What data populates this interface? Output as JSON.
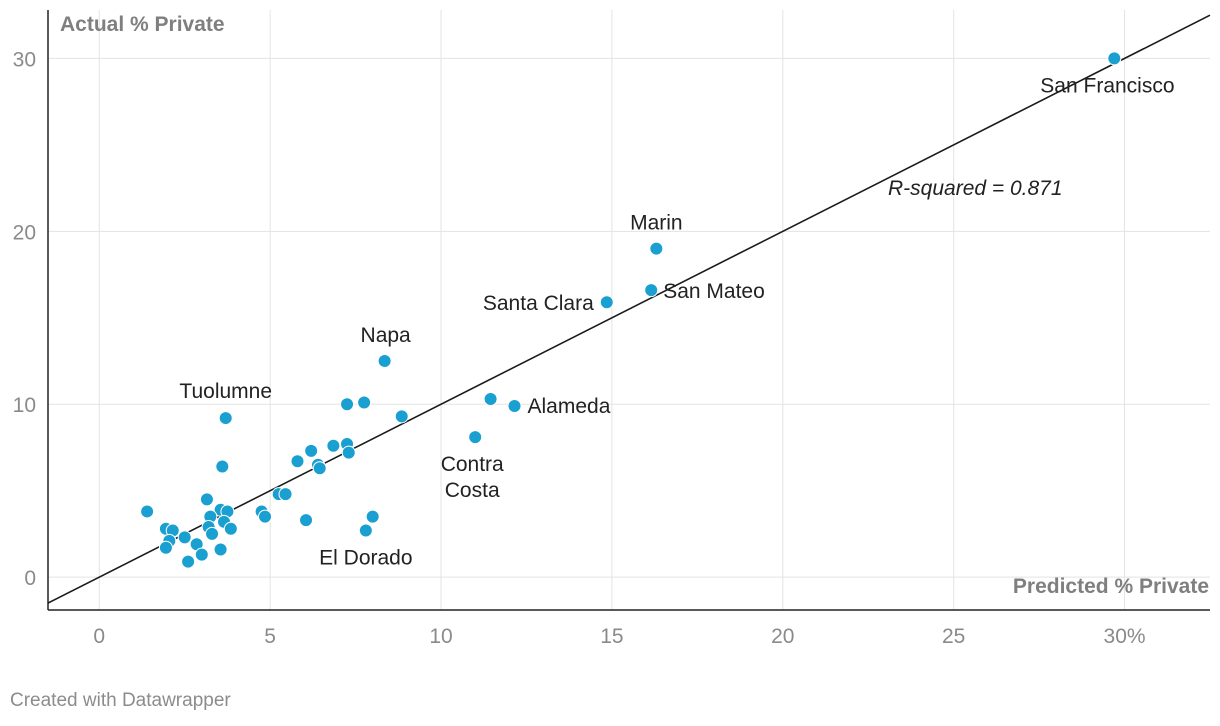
{
  "chart_data": {
    "type": "scatter",
    "xlabel": "Predicted % Private",
    "ylabel": "Actual % Private",
    "xlim": [
      -1.5,
      32.5
    ],
    "ylim": [
      -1.9,
      32.8
    ],
    "x_ticks": [
      0,
      5,
      10,
      15,
      20,
      25,
      30
    ],
    "x_tick_labels": [
      "0",
      "5",
      "10",
      "15",
      "20",
      "25",
      "30%"
    ],
    "y_ticks": [
      0,
      10,
      20,
      30
    ],
    "y_tick_labels": [
      "0",
      "10",
      "20",
      "30"
    ],
    "grid": true,
    "point_color": "#1a9fd1",
    "trendline": {
      "intercept": 0.0,
      "slope": 1.0,
      "x_from": -1.5,
      "x_to": 32.5
    },
    "annotation": "R-squared = 0.871",
    "points": [
      {
        "x": 29.7,
        "y": 30.0,
        "label": "San Francisco"
      },
      {
        "x": 16.3,
        "y": 19.0,
        "label": "Marin"
      },
      {
        "x": 16.15,
        "y": 16.6,
        "label": "San Mateo"
      },
      {
        "x": 14.85,
        "y": 15.9,
        "label": "Santa Clara"
      },
      {
        "x": 8.35,
        "y": 12.5,
        "label": "Napa"
      },
      {
        "x": 12.15,
        "y": 9.9,
        "label": "Alameda"
      },
      {
        "x": 11.0,
        "y": 8.1,
        "label": "Contra Costa"
      },
      {
        "x": 3.7,
        "y": 9.2,
        "label": "Tuolumne"
      },
      {
        "x": 7.8,
        "y": 2.7,
        "label": "El Dorado"
      },
      {
        "x": 11.45,
        "y": 10.3
      },
      {
        "x": 7.25,
        "y": 10.0
      },
      {
        "x": 7.75,
        "y": 10.1
      },
      {
        "x": 8.85,
        "y": 9.3
      },
      {
        "x": 6.2,
        "y": 7.3
      },
      {
        "x": 6.85,
        "y": 7.6
      },
      {
        "x": 7.25,
        "y": 7.7
      },
      {
        "x": 7.3,
        "y": 7.2
      },
      {
        "x": 5.8,
        "y": 6.7
      },
      {
        "x": 6.4,
        "y": 6.5
      },
      {
        "x": 6.45,
        "y": 6.3
      },
      {
        "x": 3.6,
        "y": 6.4
      },
      {
        "x": 5.25,
        "y": 4.8
      },
      {
        "x": 5.45,
        "y": 4.8
      },
      {
        "x": 4.75,
        "y": 3.8
      },
      {
        "x": 4.85,
        "y": 3.5
      },
      {
        "x": 6.05,
        "y": 3.3
      },
      {
        "x": 8.0,
        "y": 3.5
      },
      {
        "x": 1.4,
        "y": 3.8
      },
      {
        "x": 3.15,
        "y": 4.5
      },
      {
        "x": 3.55,
        "y": 3.9
      },
      {
        "x": 3.75,
        "y": 3.8
      },
      {
        "x": 3.25,
        "y": 3.5
      },
      {
        "x": 3.65,
        "y": 3.2
      },
      {
        "x": 3.2,
        "y": 2.9
      },
      {
        "x": 3.85,
        "y": 2.8
      },
      {
        "x": 3.3,
        "y": 2.5
      },
      {
        "x": 1.95,
        "y": 2.8
      },
      {
        "x": 2.15,
        "y": 2.7
      },
      {
        "x": 2.05,
        "y": 2.1
      },
      {
        "x": 2.5,
        "y": 2.3
      },
      {
        "x": 1.95,
        "y": 1.7
      },
      {
        "x": 2.85,
        "y": 1.9
      },
      {
        "x": 3.0,
        "y": 1.3
      },
      {
        "x": 3.55,
        "y": 1.6
      },
      {
        "x": 2.6,
        "y": 0.9
      }
    ]
  },
  "footer": {
    "credit": "Created with Datawrapper"
  }
}
